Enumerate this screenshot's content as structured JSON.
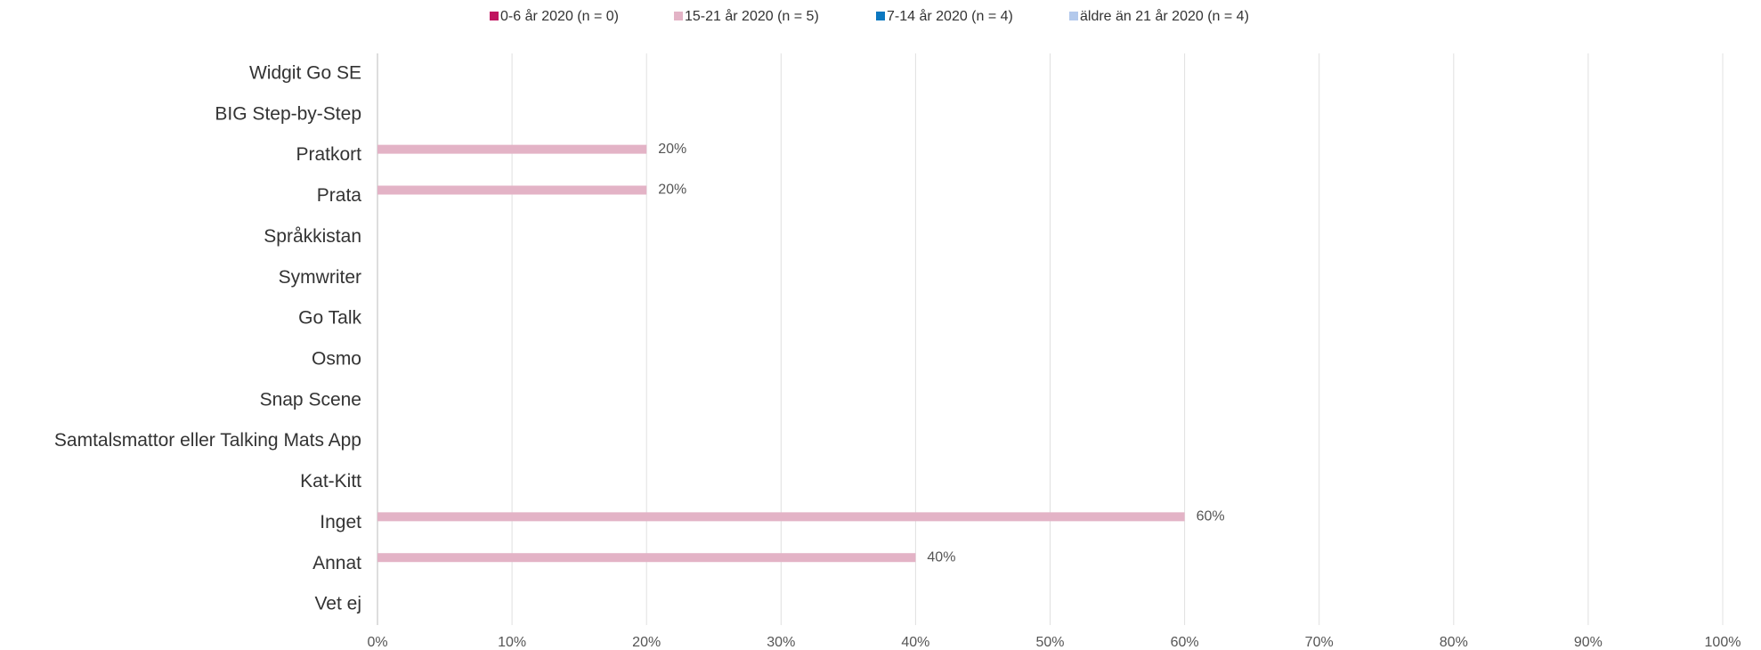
{
  "chart_data": {
    "type": "hbar",
    "categories": [
      "Widgit Go SE",
      "BIG Step-by-Step",
      "Pratkort",
      "Prata",
      "Språkkistan",
      "Symwriter",
      "Go Talk",
      "Osmo",
      "Snap Scene",
      "Samtalsmattor eller Talking Mats App",
      "Kat-Kitt",
      "Inget",
      "Annat",
      "Vet ej"
    ],
    "series": [
      {
        "name": "0-6 år 2020 (n = 0)",
        "color": "#c0145f",
        "values": [
          0,
          0,
          0,
          0,
          0,
          0,
          0,
          0,
          0,
          0,
          0,
          0,
          0,
          0
        ]
      },
      {
        "name": "15-21 år 2020 (n = 5)",
        "color": "#e3b3c6",
        "values": [
          0,
          0,
          20,
          20,
          0,
          0,
          0,
          0,
          0,
          0,
          0,
          60,
          40,
          0
        ],
        "value_labels": [
          null,
          null,
          "20%",
          "20%",
          null,
          null,
          null,
          null,
          null,
          null,
          null,
          "60%",
          "40%",
          null
        ]
      },
      {
        "name": "7-14 år 2020 (n = 4)",
        "color": "#0c78c0",
        "values": [
          0,
          0,
          0,
          0,
          0,
          0,
          0,
          0,
          0,
          0,
          0,
          0,
          0,
          0
        ]
      },
      {
        "name": "äldre än 21 år 2020 (n = 4)",
        "color": "#b3c9ec",
        "values": [
          0,
          0,
          0,
          0,
          0,
          0,
          0,
          0,
          0,
          0,
          0,
          0,
          0,
          0
        ]
      }
    ],
    "xlim": [
      0,
      100
    ],
    "xticks": [
      {
        "value": 0,
        "label": "0%"
      },
      {
        "value": 10,
        "label": "10%"
      },
      {
        "value": 20,
        "label": "20%"
      },
      {
        "value": 30,
        "label": "30%"
      },
      {
        "value": 40,
        "label": "40%"
      },
      {
        "value": 50,
        "label": "50%"
      },
      {
        "value": 60,
        "label": "60%"
      },
      {
        "value": 70,
        "label": "70%"
      },
      {
        "value": 80,
        "label": "80%"
      },
      {
        "value": 90,
        "label": "90%"
      },
      {
        "value": 100,
        "label": "100%"
      }
    ],
    "grid": true,
    "legend": "top"
  }
}
